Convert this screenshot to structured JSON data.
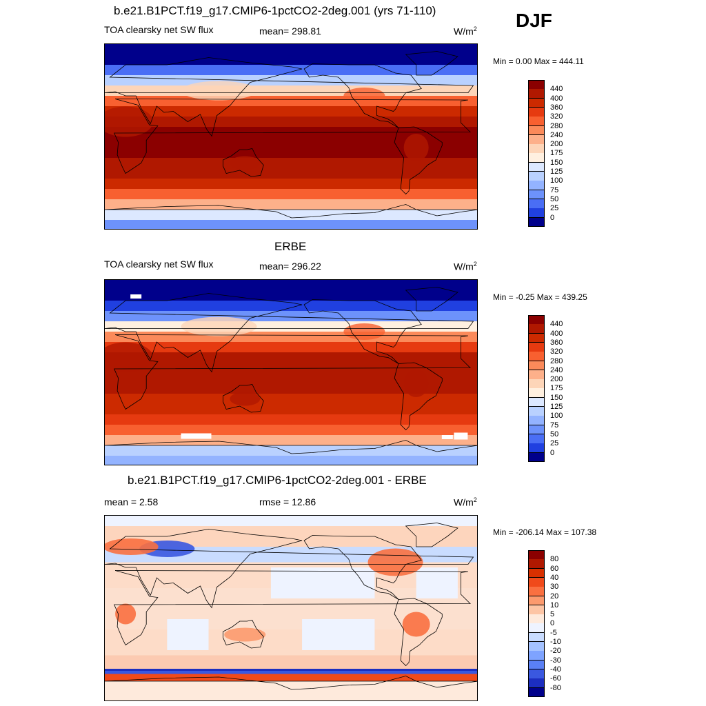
{
  "season": "DJF",
  "panels": [
    {
      "title": "b.e21.B1PCT.f19_g17.CMIP6-1pctCO2-2deg.001 (yrs 71-110)",
      "left_label": "TOA clearsky net SW flux",
      "center_label": "mean= 298.81",
      "units": "W/m",
      "units_sup": "2",
      "minmax": "Min =   0.00 Max = 444.11",
      "field": "model",
      "colorbar": {
        "labels": [
          "440",
          "400",
          "360",
          "320",
          "280",
          "240",
          "200",
          "175",
          "150",
          "125",
          "100",
          "75",
          "50",
          "25",
          "0"
        ],
        "colors": [
          "#8b0000",
          "#b01800",
          "#cc2a00",
          "#e63a10",
          "#f86030",
          "#fb8a5a",
          "#fdb08a",
          "#fdd5b8",
          "#fff0e0",
          "#dce8ff",
          "#b9d1ff",
          "#93b3ff",
          "#6d92fb",
          "#4a6ef5",
          "#2040e0",
          "#00008b"
        ]
      }
    },
    {
      "title": "ERBE",
      "left_label": "TOA clearsky net SW flux",
      "center_label": "mean= 296.22",
      "units": "W/m",
      "units_sup": "2",
      "minmax": "Min =  -0.25 Max = 439.25",
      "field": "obs",
      "colorbar": {
        "labels": [
          "440",
          "400",
          "360",
          "320",
          "280",
          "240",
          "200",
          "175",
          "150",
          "125",
          "100",
          "75",
          "50",
          "25",
          "0"
        ],
        "colors": [
          "#8b0000",
          "#b01800",
          "#cc2a00",
          "#e63a10",
          "#f86030",
          "#fb8a5a",
          "#fdb08a",
          "#fdd5b8",
          "#fff0e0",
          "#dce8ff",
          "#b9d1ff",
          "#93b3ff",
          "#6d92fb",
          "#4a6ef5",
          "#2040e0",
          "#00008b"
        ]
      }
    },
    {
      "title": "b.e21.B1PCT.f19_g17.CMIP6-1pctCO2-2deg.001 - ERBE",
      "left_label": "mean =   2.58",
      "center_label": "rmse =  12.86",
      "units": "W/m",
      "units_sup": "2",
      "minmax": "Min = -206.14 Max = 107.38",
      "field": "diff",
      "colorbar": {
        "labels": [
          "80",
          "60",
          "40",
          "30",
          "20",
          "10",
          "5",
          "0",
          "-5",
          "-10",
          "-20",
          "-30",
          "-40",
          "-60",
          "-80"
        ],
        "colors": [
          "#8b0000",
          "#b01800",
          "#d83000",
          "#f04a1a",
          "#fa7040",
          "#fc9a6e",
          "#fdc5a5",
          "#feeadc",
          "#eef3ff",
          "#c9dcff",
          "#a4c2ff",
          "#7ea3ff",
          "#5a80f5",
          "#3a58e0",
          "#1c2ec0",
          "#00008b"
        ]
      }
    }
  ]
}
